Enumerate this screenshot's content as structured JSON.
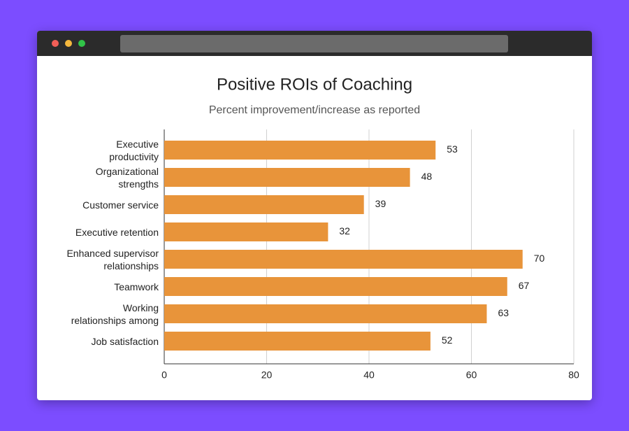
{
  "chart_data": {
    "type": "bar",
    "orientation": "horizontal",
    "title": "Positive ROIs of Coaching",
    "subtitle": "Percent improvement/increase as reported",
    "categories": [
      "Executive\nproductivity",
      "Organizational\nstrengths",
      "Customer service",
      "Executive retention",
      "Enhanced supervisor\nrelationships",
      "Teamwork",
      "Working\nrelationships among",
      "Job satisfaction"
    ],
    "values": [
      53,
      48,
      39,
      32,
      70,
      67,
      63,
      52
    ],
    "color": "#e8943a",
    "xlim": [
      0,
      80
    ],
    "xticks": [
      0,
      20,
      40,
      60,
      80
    ],
    "grid": true
  }
}
